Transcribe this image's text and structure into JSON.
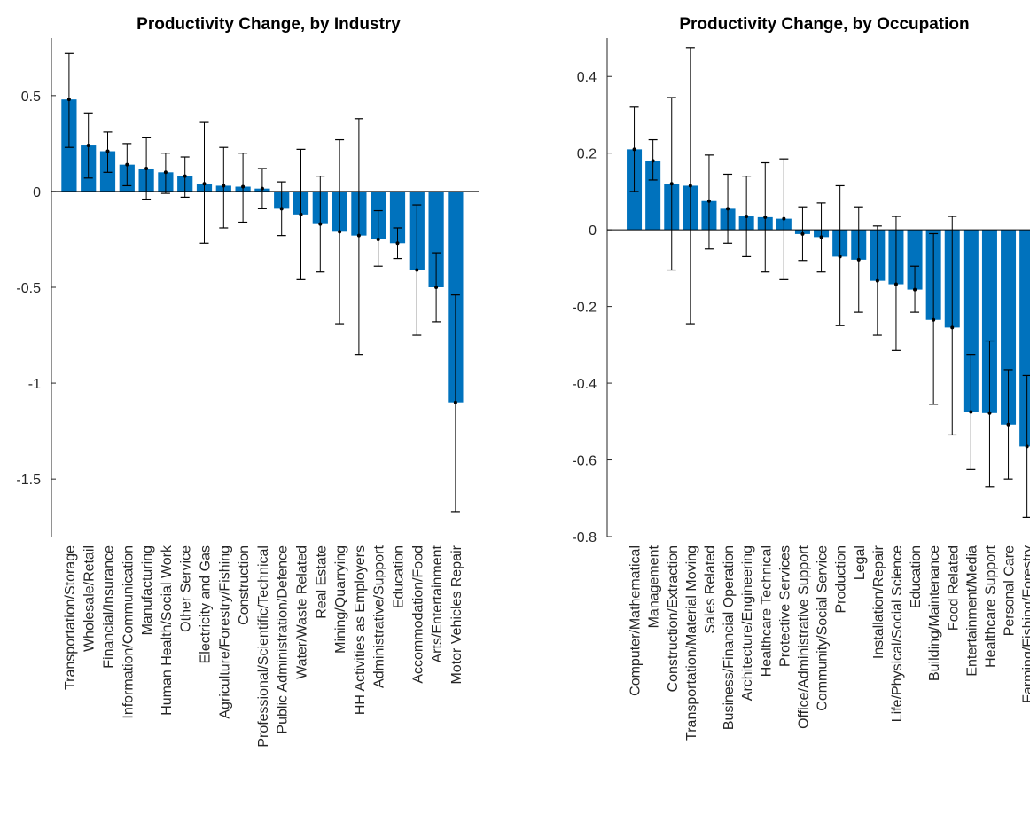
{
  "colors": {
    "bar": "#0072BD",
    "errorbar": "#000000",
    "axis": "#262626"
  },
  "chart_data": [
    {
      "type": "bar",
      "title": "Productivity Change, by Industry",
      "xlabel": "",
      "ylabel": "",
      "ylim": [
        -1.8,
        0.8
      ],
      "yticks": [
        0.5,
        0,
        -0.5,
        -1,
        -1.5
      ],
      "ytick_labels": [
        "0.5",
        "0",
        "-0.5",
        "-1",
        "-1.5"
      ],
      "grid": false,
      "categories": [
        "Transportation/Storage",
        "Wholesale/Retail",
        "Financial/Insurance",
        "Information/Communication",
        "Manufacturing",
        "Human Health/Social Work",
        "Other Service",
        "Electricity and Gas",
        "Agriculture/Forestry/Fishing",
        "Construction",
        "Professional/Scientific/Technical",
        "Public Administration/Defence",
        "Water/Waste Related",
        "Real Estate",
        "Mining/Quarrying",
        "HH Activities as Employers",
        "Administrative/Support",
        "Education",
        "Accommodation/Food",
        "Arts/Entertainment",
        "Motor Vehicles Repair"
      ],
      "values": [
        0.48,
        0.24,
        0.21,
        0.14,
        0.12,
        0.1,
        0.08,
        0.04,
        0.03,
        0.025,
        0.015,
        -0.09,
        -0.12,
        -0.17,
        -0.21,
        -0.23,
        -0.25,
        -0.27,
        -0.41,
        -0.5,
        -1.1
      ],
      "err_low": [
        0.23,
        0.07,
        0.1,
        0.03,
        -0.04,
        -0.01,
        -0.03,
        -0.27,
        -0.19,
        -0.16,
        -0.09,
        -0.23,
        -0.46,
        -0.42,
        -0.69,
        -0.85,
        -0.39,
        -0.35,
        -0.75,
        -0.68,
        -1.67
      ],
      "err_high": [
        0.72,
        0.41,
        0.31,
        0.25,
        0.28,
        0.2,
        0.18,
        0.36,
        0.23,
        0.2,
        0.12,
        0.05,
        0.22,
        0.08,
        0.27,
        0.38,
        -0.1,
        -0.19,
        -0.07,
        -0.32,
        -0.54
      ]
    },
    {
      "type": "bar",
      "title": "Productivity Change, by Occupation",
      "xlabel": "",
      "ylabel": "",
      "ylim": [
        -0.8,
        0.5
      ],
      "yticks": [
        0.4,
        0.2,
        0,
        -0.2,
        -0.4,
        -0.6,
        -0.8
      ],
      "ytick_labels": [
        "0.4",
        "0.2",
        "0",
        "-0.2",
        "-0.4",
        "-0.6",
        "-0.8"
      ],
      "grid": false,
      "categories": [
        "Computer/Mathematical",
        "Management",
        "Construction/Extraction",
        "Transportation/Material Moving",
        "Sales Related",
        "Business/Financial Operation",
        "Architecture/Engineering",
        "Healthcare Technical",
        "Protective Services",
        "Office/Administrative Support",
        "Community/Social Service",
        "Production",
        "Legal",
        "Installation/Repair",
        "Life/Physical/Social Science",
        "Education",
        "Building/Maintenance",
        "Food Related",
        "Entertainment/Media",
        "Healthcare Support",
        "Personal Care",
        "Farming/Fishing/Forestry"
      ],
      "values": [
        0.21,
        0.18,
        0.12,
        0.115,
        0.075,
        0.055,
        0.035,
        0.033,
        0.029,
        -0.011,
        -0.019,
        -0.07,
        -0.078,
        -0.133,
        -0.142,
        -0.156,
        -0.235,
        -0.255,
        -0.475,
        -0.478,
        -0.508,
        -0.565
      ],
      "err_low": [
        0.1,
        0.13,
        -0.105,
        -0.245,
        -0.05,
        -0.035,
        -0.07,
        -0.11,
        -0.13,
        -0.08,
        -0.11,
        -0.25,
        -0.215,
        -0.275,
        -0.315,
        -0.215,
        -0.455,
        -0.535,
        -0.625,
        -0.67,
        -0.65,
        -0.75
      ],
      "err_high": [
        0.32,
        0.235,
        0.345,
        0.475,
        0.195,
        0.145,
        0.14,
        0.175,
        0.185,
        0.06,
        0.07,
        0.115,
        0.06,
        0.01,
        0.035,
        -0.095,
        -0.01,
        0.035,
        -0.325,
        -0.29,
        -0.365,
        -0.38
      ]
    }
  ]
}
